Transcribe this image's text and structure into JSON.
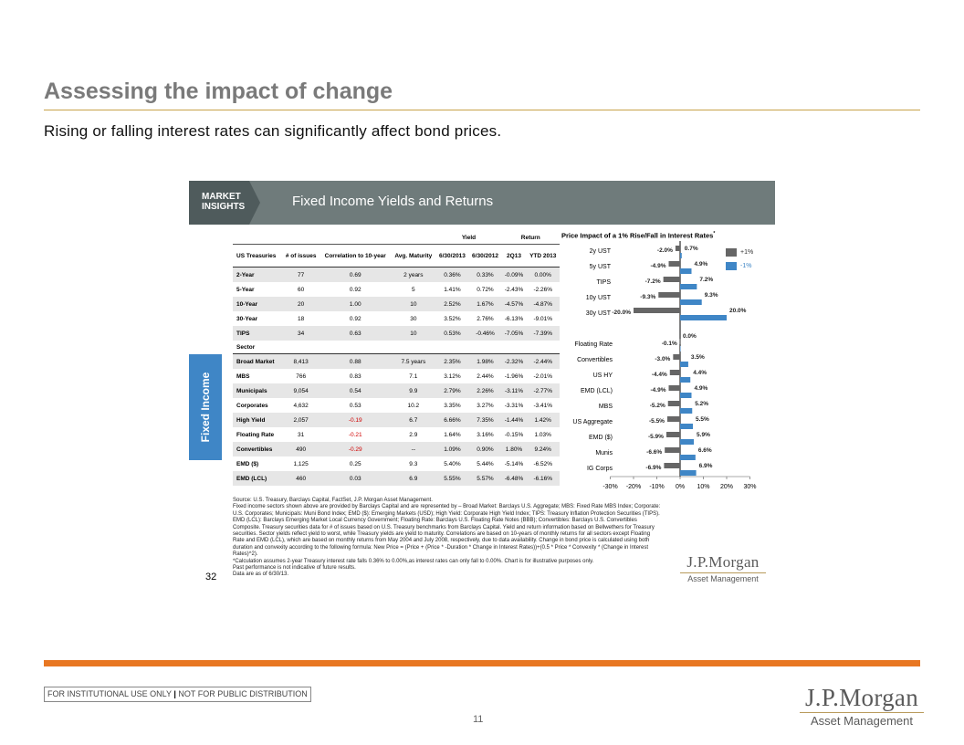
{
  "header": {
    "title": "Assessing the impact of change",
    "subtitle": "Rising or falling interest rates can significantly affect bond prices."
  },
  "slide": {
    "market_insights_line1": "MARKET",
    "market_insights_line2": "INSIGHTS",
    "band_title": "Fixed Income Yields and Returns",
    "side_tab": "Fixed Income",
    "page_number": "32",
    "table": {
      "group_headers": {
        "yield": "Yield",
        "return": "Return"
      },
      "columns": [
        "US Treasuries",
        "# of issues",
        "Correlation to 10-year",
        "Avg. Maturity",
        "6/30/2013",
        "6/30/2012",
        "2Q13",
        "YTD 2013"
      ],
      "treasuries": [
        [
          "2-Year",
          "77",
          "0.69",
          "2 years",
          "0.36%",
          "0.33%",
          "-0.09%",
          "0.00%"
        ],
        [
          "5-Year",
          "60",
          "0.92",
          "5",
          "1.41%",
          "0.72%",
          "-2.43%",
          "-2.26%"
        ],
        [
          "10-Year",
          "20",
          "1.00",
          "10",
          "2.52%",
          "1.67%",
          "-4.57%",
          "-4.87%"
        ],
        [
          "30-Year",
          "18",
          "0.92",
          "30",
          "3.52%",
          "2.76%",
          "-6.13%",
          "-9.01%"
        ],
        [
          "TIPS",
          "34",
          "0.63",
          "10",
          "0.53%",
          "-0.46%",
          "-7.05%",
          "-7.39%"
        ]
      ],
      "sector_label": "Sector",
      "sectors": [
        [
          "Broad Market",
          "8,413",
          "0.88",
          "7.5 years",
          "2.35%",
          "1.98%",
          "-2.32%",
          "-2.44%"
        ],
        [
          "MBS",
          "766",
          "0.83",
          "7.1",
          "3.12%",
          "2.44%",
          "-1.96%",
          "-2.01%"
        ],
        [
          "Municipals",
          "9,054",
          "0.54",
          "9.9",
          "2.79%",
          "2.26%",
          "-3.11%",
          "-2.77%"
        ],
        [
          "Corporates",
          "4,632",
          "0.53",
          "10.2",
          "3.35%",
          "3.27%",
          "-3.31%",
          "-3.41%"
        ],
        [
          "High Yield",
          "2,057",
          "-0.19",
          "6.7",
          "6.66%",
          "7.35%",
          "-1.44%",
          "1.42%"
        ],
        [
          "Floating Rate",
          "31",
          "-0.21",
          "2.9",
          "1.64%",
          "3.16%",
          "-0.15%",
          "1.03%"
        ],
        [
          "Convertibles",
          "490",
          "-0.29",
          "--",
          "1.09%",
          "0.90%",
          "1.80%",
          "9.24%"
        ],
        [
          "EMD ($)",
          "1,125",
          "0.25",
          "9.3",
          "5.40%",
          "5.44%",
          "-5.14%",
          "-6.52%"
        ],
        [
          "EMD (LCL)",
          "460",
          "0.03",
          "6.9",
          "5.55%",
          "5.57%",
          "-6.48%",
          "-6.16%"
        ]
      ]
    },
    "notes": [
      "Source: U.S. Treasury, Barclays Capital, FactSet, J.P. Morgan Asset Management.",
      "Fixed income sectors shown above are provided by Barclays Capital and are represented by – Broad Market: Barclays U.S. Aggregate; MBS: Fixed Rate MBS Index; Corporate: U.S. Corporates; Municipals: Muni Bond Index; EMD ($): Emerging Markets (USD); High Yield: Corporate High Yield Index; TIPS: Treasury Inflation Protection Securities (TIPS). EMD (LCL): Barclays Emerging Market Local Currency Government; Floating Rate: Barclays U.S. Floating Rate Notes (BBB); Convertibles: Barclays U.S. Convertibles Composite. Treasury securities data for # of issues based on U.S. Treasury benchmarks from Barclays Capital. Yield and return information based on Bellwethers for Treasury securities. Sector yields reflect yield to worst, while Treasury yields are yield to maturity. Correlations are based on 10-years of monthly returns for all sectors except Floating Rate and EMD (LCL), which are based on monthly returns from May 2004 and July 2008, respectively, due to data availability. Change in bond price is calculated using both duration and convexity according to the following formula: New Price = (Price + (Price * -Duration * Change in Interest Rates))+(0.5 * Price * Convexity * (Change in Interest Rates)^2).",
      "*Calculation assumes 2-year Treasury interest rate falls 0.36% to 0.00%,as interest rates can only fall to 0.00%. Chart is for illustrative purposes only.",
      "Past performance is not indicative of future results.",
      "Data are as of 6/30/13."
    ],
    "logo_small": {
      "line1": "J.P.Morgan",
      "line2": "Asset Management"
    }
  },
  "chart_data": {
    "type": "bar",
    "orientation": "horizontal",
    "title": "Price Impact of a 1% Rise/Fall in Interest Rates",
    "title_mark": "*",
    "categories": [
      "2y UST",
      "5y UST",
      "TIPS",
      "10y UST",
      "30y UST",
      "Floating Rate",
      "Convertibles",
      "US HY",
      "EMD (LCL)",
      "MBS",
      "US Aggregate",
      "EMD ($)",
      "Munis",
      "IG Corps"
    ],
    "series": [
      {
        "name": "+1%",
        "color": "#666666",
        "values": [
          -2.0,
          -4.9,
          -7.2,
          -9.3,
          -20.0,
          -0.1,
          -3.0,
          -4.4,
          -4.9,
          -5.2,
          -5.5,
          -5.9,
          -6.6,
          -6.9
        ]
      },
      {
        "name": "-1%",
        "color": "#3f86c6",
        "values": [
          0.7,
          4.9,
          7.2,
          9.3,
          20.0,
          0.0,
          3.5,
          4.4,
          4.9,
          5.2,
          5.5,
          5.9,
          6.6,
          6.9
        ]
      }
    ],
    "xlim": [
      -30,
      30
    ],
    "xticks": [
      "-30%",
      "-20%",
      "-10%",
      "0%",
      "10%",
      "20%",
      "30%"
    ],
    "legend": "top-right"
  },
  "footer": {
    "disclaimer_left": "FOR INSTITUTIONAL USE ONLY",
    "disclaimer_sep": "|",
    "disclaimer_right": "NOT FOR PUBLIC DISTRIBUTION",
    "page": "11",
    "logo": {
      "line1": "J.P.Morgan",
      "line2": "Asset Management"
    }
  },
  "colors": {
    "accent_orange": "#e87722",
    "gold_rule": "#c8a24a",
    "chart_blue": "#3f86c6",
    "chart_gray": "#666666",
    "band": "#6f7b7b"
  }
}
